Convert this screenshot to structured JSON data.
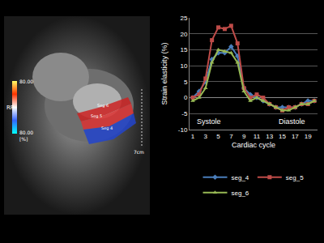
{
  "chart_data": {
    "type": "line",
    "x_label": "Cardiac cycle",
    "y_label": "Strain elasticity (%)",
    "x": [
      1,
      2,
      3,
      4,
      5,
      6,
      7,
      8,
      9,
      10,
      11,
      12,
      13,
      14,
      15,
      16,
      17,
      18,
      19,
      20
    ],
    "series": [
      {
        "name": "seg_4",
        "color": "#4a7ebb",
        "marker": "diamond",
        "values": [
          0,
          2,
          5,
          12,
          14,
          14,
          16,
          13,
          3,
          1,
          0,
          -1,
          -2,
          -3,
          -3,
          -3,
          -3,
          -2,
          -1,
          -1
        ]
      },
      {
        "name": "seg_5",
        "color": "#be4b48",
        "marker": "square",
        "values": [
          0,
          1,
          6,
          18,
          22,
          21.5,
          22.5,
          17,
          3,
          0,
          1,
          0,
          -2,
          -3,
          -4,
          -3,
          -3,
          -2,
          -2,
          -1
        ]
      },
      {
        "name": "seg_6",
        "color": "#98b954",
        "marker": "triangle",
        "values": [
          -1,
          0,
          3,
          11,
          15,
          14.5,
          14,
          11,
          2,
          -1,
          0,
          -1,
          -2,
          -3,
          -4,
          -4,
          -3,
          -2,
          -2,
          -1
        ]
      }
    ],
    "xlim": [
      0.5,
      20.5
    ],
    "xticks": [
      1,
      3,
      5,
      7,
      9,
      11,
      13,
      15,
      17,
      19
    ],
    "ylim": [
      -10,
      25
    ],
    "yticks": [
      -10,
      -5,
      0,
      5,
      10,
      15,
      20,
      25
    ],
    "grid": true,
    "legend": "bottom",
    "annotations": [
      {
        "text": "Systole",
        "x": 3.5,
        "y": -7.5
      },
      {
        "text": "Diastole",
        "x": 16.5,
        "y": -7.5
      }
    ]
  },
  "panel": {
    "colorbar_top": "80.00",
    "colorbar_label": "RP",
    "colorbar_bottom": "80.00",
    "colorbar_unit": "[%]",
    "segments": [
      "Seg 6",
      "Seg 5",
      "Seg 4"
    ],
    "scale": "7cm"
  }
}
